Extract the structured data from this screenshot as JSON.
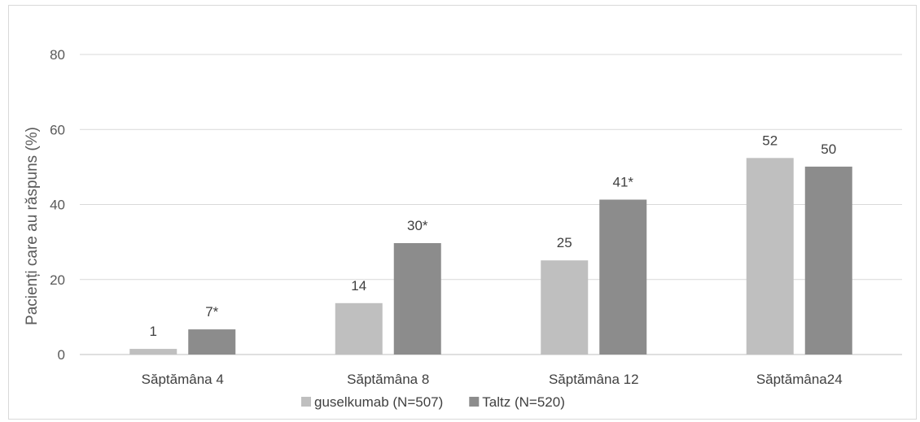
{
  "chart_data": {
    "type": "bar",
    "ylabel": "Pacienți care au răspuns (%)",
    "ylim": [
      0,
      80
    ],
    "yticks": [
      0,
      20,
      40,
      60,
      80
    ],
    "grid": true,
    "legend_position": "bottom",
    "categories": [
      "Săptămâna 4",
      "Săptămâna 8",
      "Săptămâna 12",
      "Săptămâna24"
    ],
    "series": [
      {
        "name": "guselkumab (N=507)",
        "color": "#bfbfbf",
        "values": [
          1.5,
          13.7,
          25.1,
          52.4
        ],
        "labels": [
          "1",
          "14",
          "25",
          "52"
        ]
      },
      {
        "name": "Taltz (N=520)",
        "color": "#8c8c8c",
        "values": [
          6.7,
          29.7,
          41.3,
          50.1
        ],
        "labels": [
          "7*",
          "30*",
          "41*",
          "50"
        ]
      }
    ]
  }
}
